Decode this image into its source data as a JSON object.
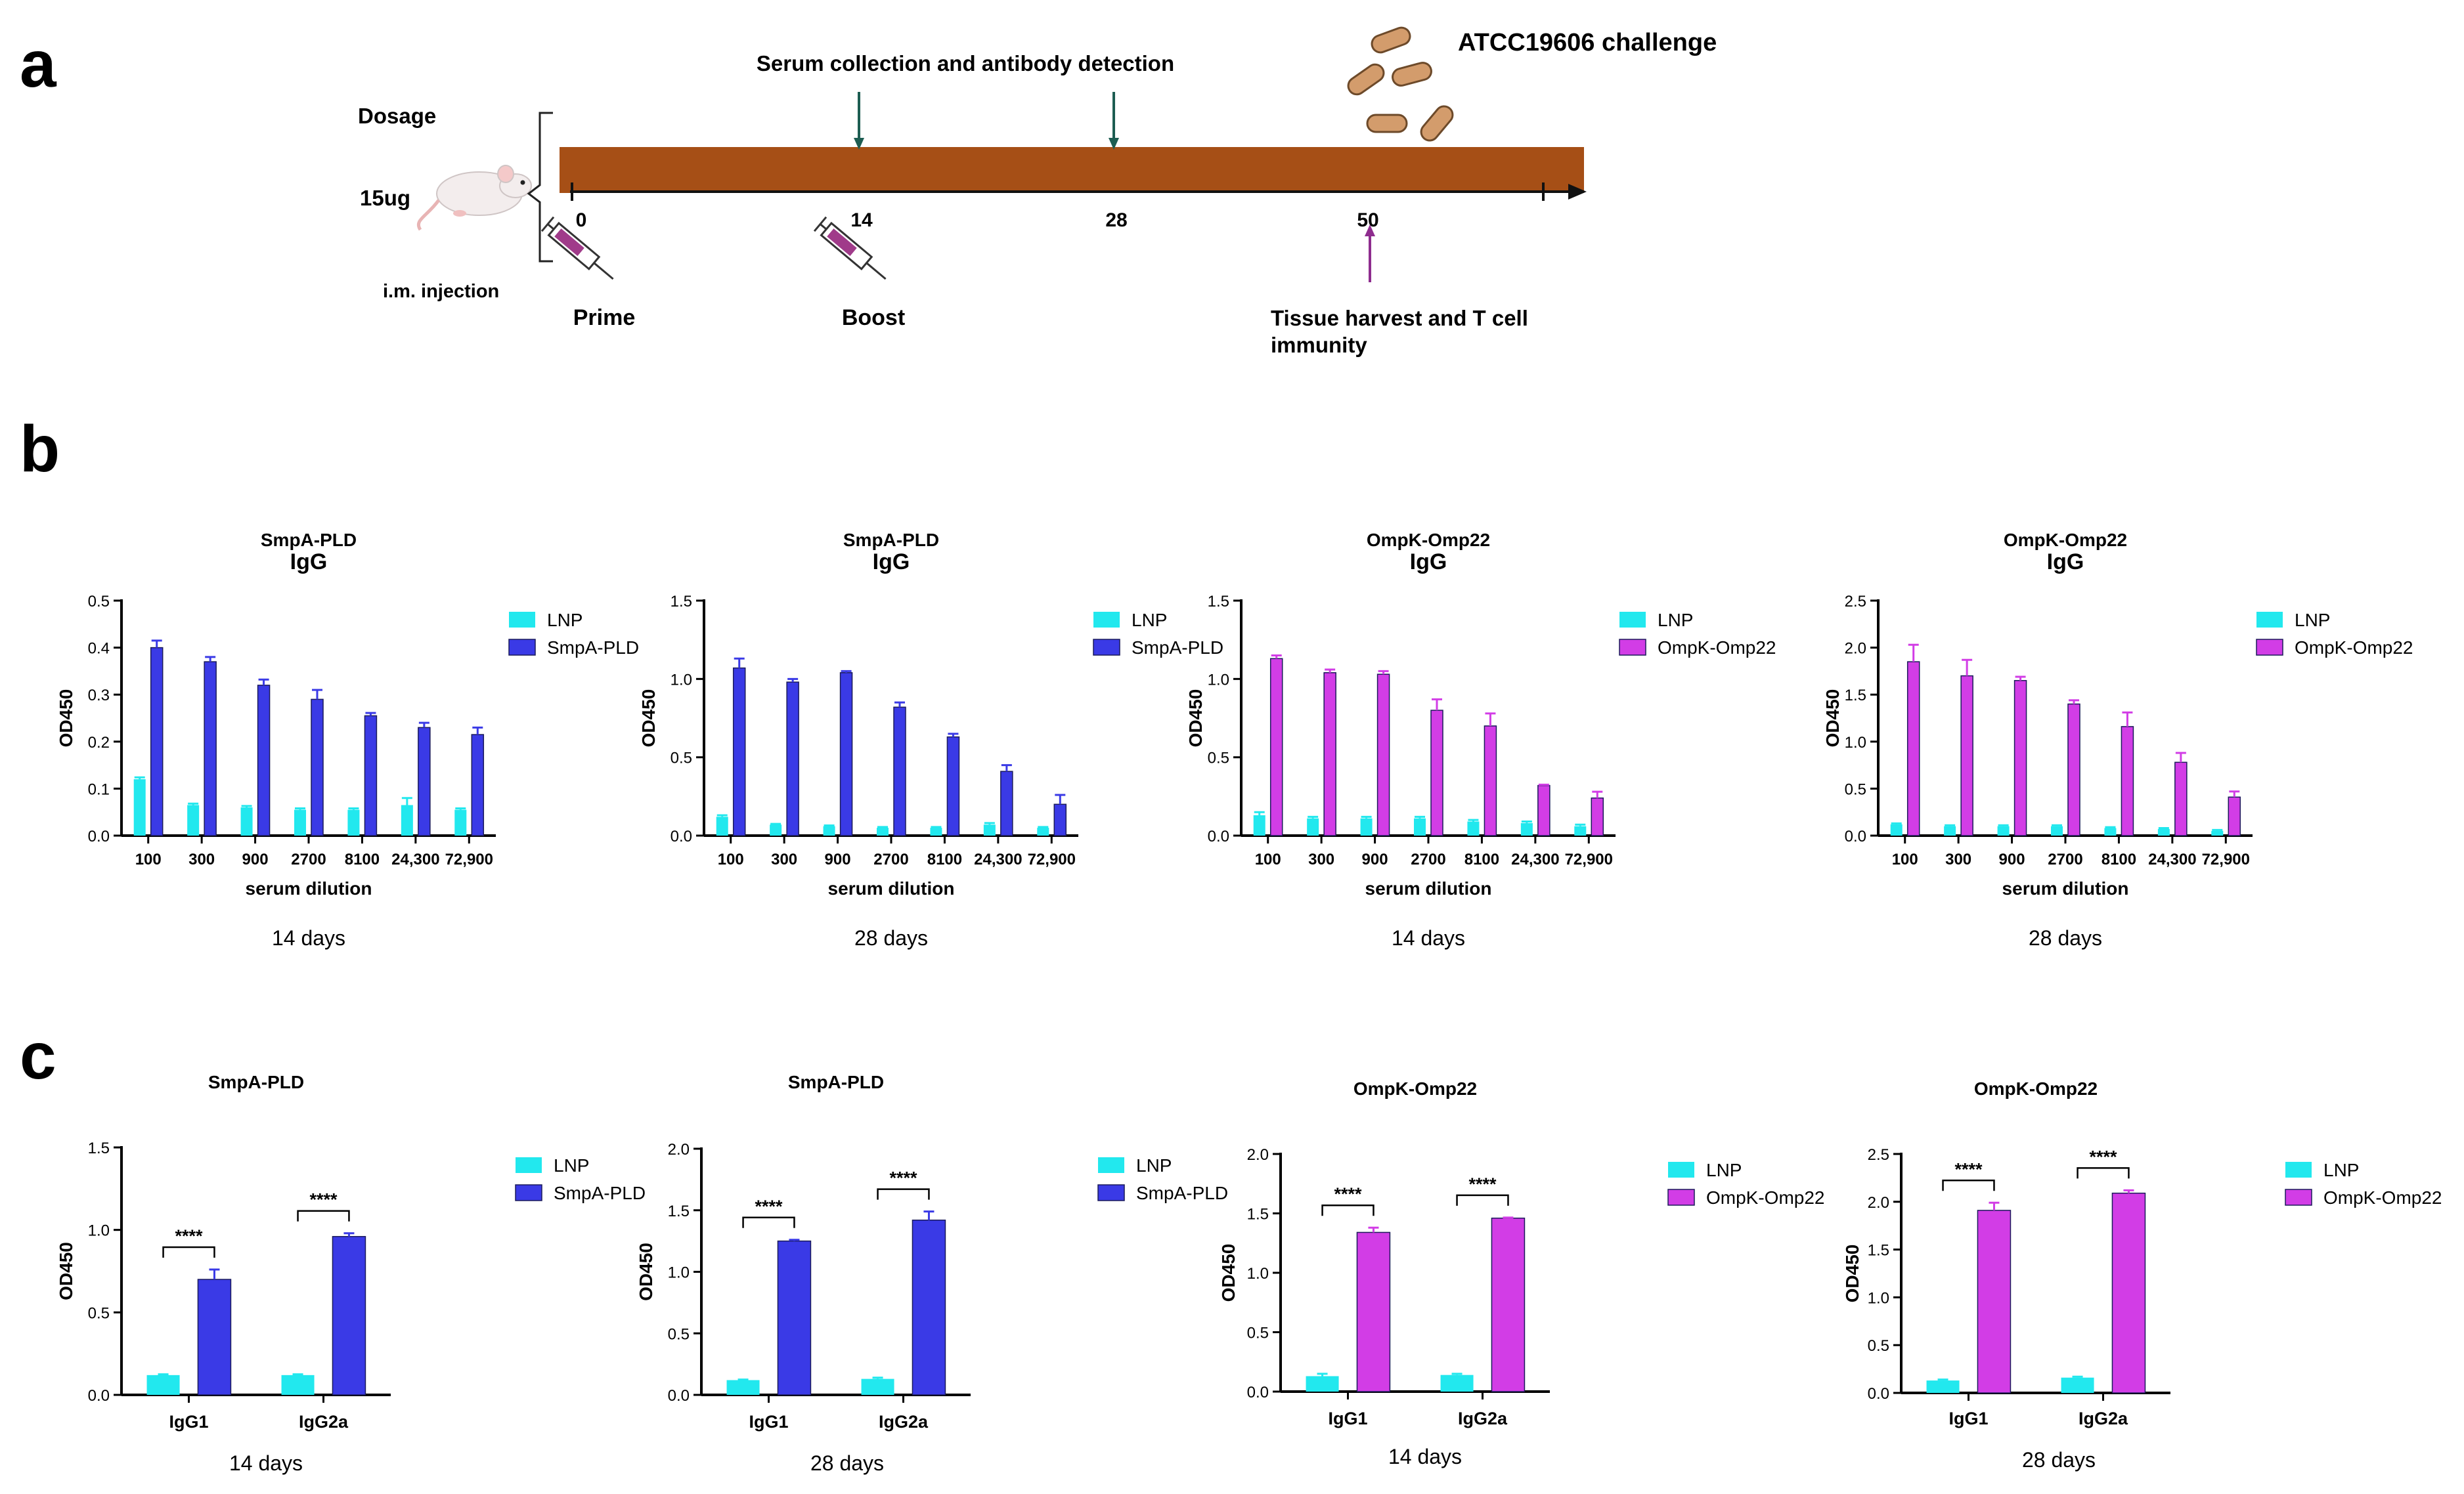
{
  "panel_labels": {
    "a": "a",
    "b": "b",
    "c": "c"
  },
  "colors": {
    "lnp": "#22e8ee",
    "smpa": "#3a3ae6",
    "ompk": "#d23de6",
    "timeline_bar": "#a64f16",
    "arrow_green": "#1d5d52",
    "arrow_purple": "#8e2c8e",
    "bacteria": "#d39c6c"
  },
  "schematic": {
    "dosage_label": "Dosage",
    "dose_value": "15ug",
    "route": "i.m. injection",
    "serum_label": "Serum collection and antibody detection",
    "challenge_label": "ATCC19606 challenge",
    "days": [
      "0",
      "14",
      "28",
      "50"
    ],
    "prime_label": "Prime",
    "boost_label": "Boost",
    "harvest_label_line1": "Tissue harvest and T cell",
    "harvest_label_line2": "immunity"
  },
  "chart_data": [
    {
      "panel": "b",
      "type": "bar",
      "title": "SmpA-PLD",
      "subtitle": "IgG",
      "categories": [
        "100",
        "300",
        "900",
        "2700",
        "8100",
        "24,300",
        "72,900"
      ],
      "series": [
        {
          "name": "LNP",
          "values": [
            0.12,
            0.065,
            0.06,
            0.055,
            0.055,
            0.065,
            0.055
          ],
          "errors": [
            0.004,
            0.003,
            0.003,
            0.003,
            0.003,
            0.015,
            0.003
          ]
        },
        {
          "name": "SmpA-PLD",
          "values": [
            0.4,
            0.37,
            0.32,
            0.29,
            0.255,
            0.23,
            0.215
          ],
          "errors": [
            0.015,
            0.01,
            0.012,
            0.02,
            0.006,
            0.01,
            0.015
          ]
        }
      ],
      "ylabel": "OD450",
      "xlabel": "serum dilution",
      "ylim": [
        0,
        0.5
      ],
      "yticks": [
        "0.0",
        "0.1",
        "0.2",
        "0.3",
        "0.4",
        "0.5"
      ],
      "caption": "14 days"
    },
    {
      "panel": "b",
      "type": "bar",
      "title": "SmpA-PLD",
      "subtitle": "IgG",
      "categories": [
        "100",
        "300",
        "900",
        "2700",
        "8100",
        "24,300",
        "72,900"
      ],
      "series": [
        {
          "name": "LNP",
          "values": [
            0.12,
            0.07,
            0.06,
            0.05,
            0.05,
            0.07,
            0.05
          ],
          "errors": [
            0.01,
            0.005,
            0.005,
            0.005,
            0.005,
            0.01,
            0.005
          ]
        },
        {
          "name": "SmpA-PLD",
          "values": [
            1.07,
            0.98,
            1.04,
            0.82,
            0.63,
            0.41,
            0.2
          ],
          "errors": [
            0.06,
            0.02,
            0.01,
            0.03,
            0.02,
            0.04,
            0.06
          ]
        }
      ],
      "ylabel": "OD450",
      "xlabel": "serum dilution",
      "ylim": [
        0,
        1.5
      ],
      "yticks": [
        "0.0",
        "0.5",
        "1.0",
        "1.5"
      ],
      "caption": "28 days"
    },
    {
      "panel": "b",
      "type": "bar",
      "title": "OmpK-Omp22",
      "subtitle": "IgG",
      "categories": [
        "100",
        "300",
        "900",
        "2700",
        "8100",
        "24,300",
        "72,900"
      ],
      "series": [
        {
          "name": "LNP",
          "values": [
            0.13,
            0.11,
            0.11,
            0.11,
            0.09,
            0.08,
            0.06
          ],
          "errors": [
            0.02,
            0.01,
            0.01,
            0.01,
            0.01,
            0.01,
            0.01
          ]
        },
        {
          "name": "OmpK-Omp22",
          "values": [
            1.13,
            1.04,
            1.03,
            0.8,
            0.7,
            0.32,
            0.24
          ],
          "errors": [
            0.02,
            0.02,
            0.02,
            0.07,
            0.08,
            0.005,
            0.04
          ]
        }
      ],
      "ylabel": "OD450",
      "xlabel": "serum dilution",
      "ylim": [
        0,
        1.5
      ],
      "yticks": [
        "0.0",
        "0.5",
        "1.0",
        "1.5"
      ],
      "caption": "14 days"
    },
    {
      "panel": "b",
      "type": "bar",
      "title": "OmpK-Omp22",
      "subtitle": "IgG",
      "categories": [
        "100",
        "300",
        "900",
        "2700",
        "8100",
        "24,300",
        "72,900"
      ],
      "series": [
        {
          "name": "LNP",
          "values": [
            0.12,
            0.1,
            0.1,
            0.1,
            0.08,
            0.07,
            0.05
          ],
          "errors": [
            0.01,
            0.01,
            0.01,
            0.01,
            0.01,
            0.01,
            0.01
          ]
        },
        {
          "name": "OmpK-Omp22",
          "values": [
            1.85,
            1.7,
            1.65,
            1.4,
            1.16,
            0.78,
            0.41
          ],
          "errors": [
            0.18,
            0.17,
            0.04,
            0.04,
            0.15,
            0.1,
            0.06
          ]
        }
      ],
      "ylabel": "OD450",
      "xlabel": "serum dilution",
      "ylim": [
        0,
        2.5
      ],
      "yticks": [
        "0.0",
        "0.5",
        "1.0",
        "1.5",
        "2.0",
        "2.5"
      ],
      "caption": "28 days"
    },
    {
      "panel": "c",
      "type": "bar",
      "title": "SmpA-PLD",
      "categories": [
        "IgG1",
        "IgG2a"
      ],
      "series": [
        {
          "name": "LNP",
          "values": [
            0.12,
            0.12
          ],
          "errors": [
            0.005,
            0.005
          ]
        },
        {
          "name": "SmpA-PLD",
          "values": [
            0.7,
            0.96
          ],
          "errors": [
            0.06,
            0.02
          ]
        }
      ],
      "significance": [
        "****",
        "****"
      ],
      "ylabel": "OD450",
      "ylim": [
        0,
        1.5
      ],
      "yticks": [
        "0.0",
        "0.5",
        "1.0",
        "1.5"
      ],
      "caption": "14 days"
    },
    {
      "panel": "c",
      "type": "bar",
      "title": "SmpA-PLD",
      "categories": [
        "IgG1",
        "IgG2a"
      ],
      "series": [
        {
          "name": "LNP",
          "values": [
            0.12,
            0.13
          ],
          "errors": [
            0.005,
            0.01
          ]
        },
        {
          "name": "SmpA-PLD",
          "values": [
            1.25,
            1.42
          ],
          "errors": [
            0.01,
            0.07
          ]
        }
      ],
      "significance": [
        "****",
        "****"
      ],
      "ylabel": "OD450",
      "ylim": [
        0,
        2.0
      ],
      "yticks": [
        "0.0",
        "0.5",
        "1.0",
        "1.5",
        "2.0"
      ],
      "caption": "28 days"
    },
    {
      "panel": "c",
      "type": "bar",
      "title": "OmpK-Omp22",
      "categories": [
        "IgG1",
        "IgG2a"
      ],
      "series": [
        {
          "name": "LNP",
          "values": [
            0.13,
            0.14
          ],
          "errors": [
            0.02,
            0.01
          ]
        },
        {
          "name": "OmpK-Omp22",
          "values": [
            1.34,
            1.46
          ],
          "errors": [
            0.04,
            0.005
          ]
        }
      ],
      "significance": [
        "****",
        "****"
      ],
      "ylabel": "OD450",
      "ylim": [
        0,
        2.0
      ],
      "yticks": [
        "0.0",
        "0.5",
        "1.0",
        "1.5",
        "2.0"
      ],
      "caption": "14 days"
    },
    {
      "panel": "c",
      "type": "bar",
      "title": "OmpK-Omp22",
      "categories": [
        "IgG1",
        "IgG2a"
      ],
      "series": [
        {
          "name": "LNP",
          "values": [
            0.13,
            0.16
          ],
          "errors": [
            0.01,
            0.01
          ]
        },
        {
          "name": "OmpK-Omp22",
          "values": [
            1.91,
            2.09
          ],
          "errors": [
            0.08,
            0.03
          ]
        }
      ],
      "significance": [
        "****",
        "****"
      ],
      "ylabel": "OD450",
      "ylim": [
        0,
        2.5
      ],
      "yticks": [
        "0.0",
        "0.5",
        "1.0",
        "1.5",
        "2.0",
        "2.5"
      ],
      "caption": "28 days"
    }
  ]
}
